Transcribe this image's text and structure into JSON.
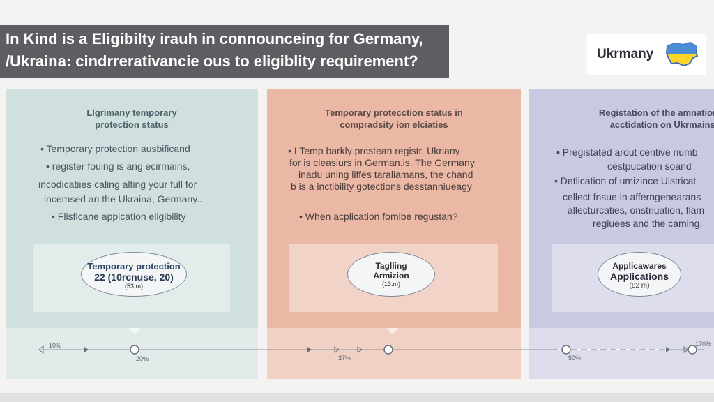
{
  "title": {
    "line1": "In Kind is a Eligibilty irauh in connounceing for Germany,",
    "line2": "/Ukraina: cindrrerativancie ous to eligiblity requirement?"
  },
  "brand": {
    "label": "Ukrmany"
  },
  "panels": [
    {
      "heading1": "Llgrimany temporary",
      "heading2": "protection status",
      "lines": [
        "•  Temporary protection ausbificand",
        "•  register fouing is ang ecirmains,",
        "incodicatiies caling alting your full for",
        "incemsed  an the Ukraina, Germany..",
        "•  Flisficane appication eligibility"
      ],
      "oval": {
        "l1": "Temporary protection",
        "l2": "22 (10rcnuse, 20)",
        "l3": "(53.m)"
      }
    },
    {
      "heading1": "Temporary protecction status in",
      "heading2": "compradsity ion elciaties",
      "lines": [
        "•  I Temp barkly prcstean registr. Ukriany",
        "for is cleasiurs in German.is.  The Germany",
        "inadu uning liffes taraliamans, the chand",
        "b is a inctibility gotections desstanniueagy",
        "•  When acplication fomlbe regustan?"
      ],
      "oval": {
        "l1": "Taglling",
        "l2": "Armizion",
        "l3": "(13.m)"
      }
    },
    {
      "heading1": "Registation of the amnation",
      "heading2": "acctidation on Ukrmains:",
      "lines": [
        "•   Pregistated arout centive numb",
        "cestpucation soand",
        "•  Detlication of umizince Ulstricat",
        "cellect fnsue  in afferngenearans",
        "allecturcaties, onstriuation, flam",
        "regiuees and the caming."
      ],
      "oval": {
        "l1": "Applicawares",
        "l2": "Applications",
        "l3": "(82 m)"
      }
    }
  ],
  "timeline": {
    "labels": [
      "10%",
      "20%",
      "37%",
      "50%",
      "170%"
    ]
  },
  "colors": {
    "teal": "#cfe0df",
    "salmon": "#ebb8a6",
    "lavender": "#cac9e2",
    "title_bg": "#5e5d62"
  }
}
